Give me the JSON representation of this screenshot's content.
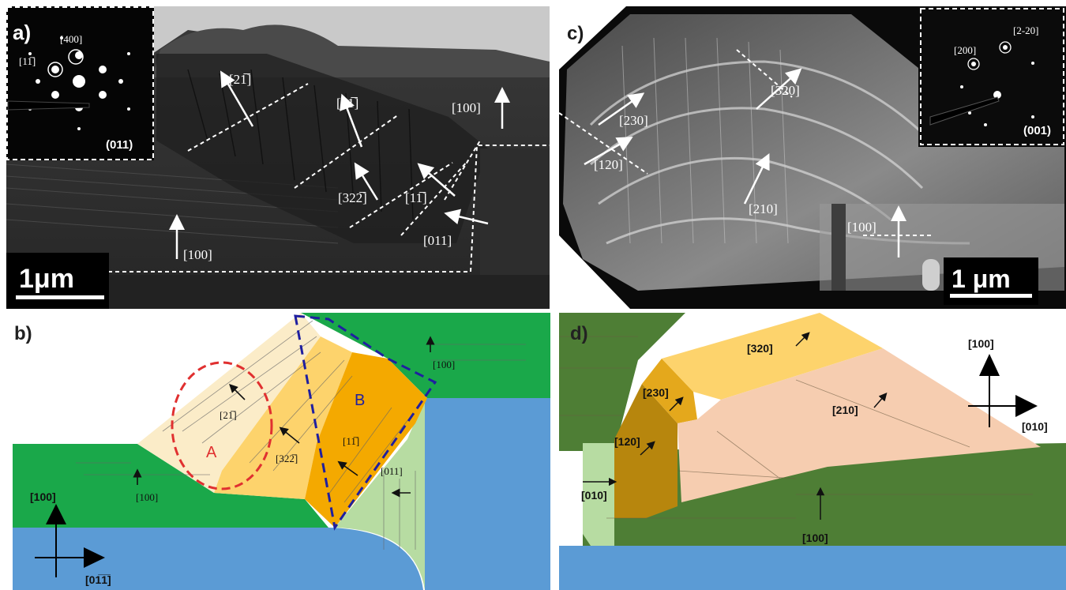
{
  "panel_a": {
    "label": "a)",
    "inset": {
      "spots": [
        "[400]",
        "[11̅]"
      ],
      "zone": "(011)"
    },
    "directions": [
      "[21̅]",
      "[21̅]",
      "[100]",
      "[322̅]",
      "[11̅]",
      "[011]",
      "[100]"
    ],
    "scale": "1μm"
  },
  "panel_b": {
    "label": "b)",
    "directions": [
      "[21̅]",
      "[322̅]",
      "[11̅]",
      "[011]",
      "[100]",
      "[100]"
    ],
    "regions": [
      "A",
      "B"
    ],
    "axes": {
      "up": "[100]",
      "right": "[01̅1̅]"
    }
  },
  "panel_c": {
    "label": "c)",
    "inset": {
      "spots": [
        "[200]",
        "[2-20]"
      ],
      "zone": "(001)"
    },
    "directions": [
      "[320]",
      "[230]",
      "[120]",
      "[210]",
      "[100]"
    ],
    "scale": "1 μm"
  },
  "panel_d": {
    "label": "d)",
    "directions": [
      "[320]",
      "[230]",
      "[120]",
      "[210]",
      "[010]",
      "[100]"
    ],
    "axes": {
      "up": "[100]",
      "right": "[010]"
    }
  },
  "colors": {
    "green": "#1aa84a",
    "blue": "#5b9bd5",
    "dark_green": "#4e7e35",
    "light_green": "#b7dca2",
    "cream": "#fbecc8",
    "yellow": "#fdd36c",
    "orange": "#f4a900",
    "peach": "#f6cdb0",
    "brown": "#b7860d",
    "golden": "#e4a81c",
    "red_dash": "#e03030",
    "blue_dash": "#1f1fa0"
  }
}
